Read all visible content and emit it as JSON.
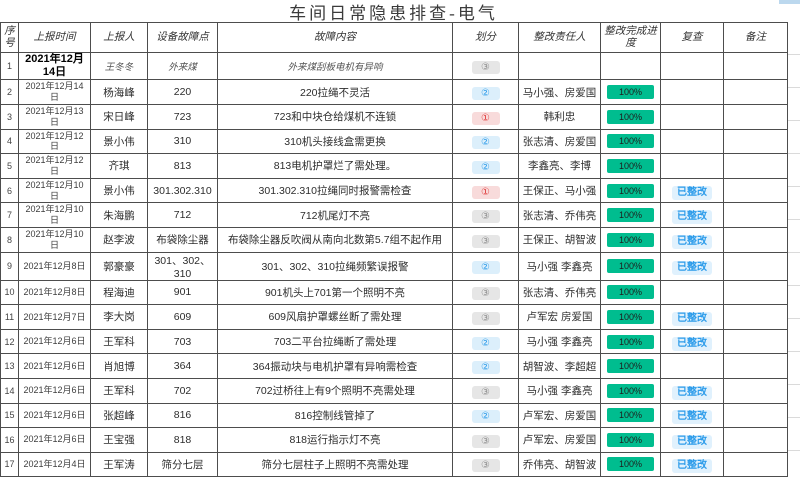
{
  "title": "车间日常隐患排查-电气",
  "columns": [
    "序号",
    "上报时间",
    "上报人",
    "设备故障点",
    "故障内容",
    "划分",
    "整改责任人",
    "整改完成进度",
    "复查",
    "备注"
  ],
  "level_glyphs": {
    "1": "①",
    "2": "②",
    "3": "③"
  },
  "colors": {
    "progress_bar": "#00BD8F",
    "level1_text": "#E03C3C",
    "level1_bg": "#F8DBDB",
    "level2_text": "#2D9CEA",
    "level2_bg": "#DCEFFB",
    "level3_text": "#8C8C8C",
    "level3_bg": "#E6E6E6",
    "review_text": "#2D9CEA",
    "review_bg": "#E0F1FD",
    "border": "#4d4d4d"
  },
  "rows": [
    {
      "no": "1",
      "date": "2021年12月14日",
      "reporter": "王冬冬",
      "device": "外来煤",
      "content": "外来煤刮板电机有异响",
      "level": "3",
      "owner": "",
      "progress": "",
      "review": "",
      "note": "",
      "special": true
    },
    {
      "no": "2",
      "date": "2021年12月14日",
      "reporter": "杨海峰",
      "device": "220",
      "content": "220拉绳不灵活",
      "level": "2",
      "owner": "马小强、房爱国",
      "progress": "100%",
      "review": "",
      "note": ""
    },
    {
      "no": "3",
      "date": "2021年12月13日",
      "reporter": "宋日峰",
      "device": "723",
      "content": "723和中块仓给煤机不连锁",
      "level": "1",
      "owner": "韩利忠",
      "progress": "100%",
      "review": "",
      "note": ""
    },
    {
      "no": "4",
      "date": "2021年12月12日",
      "reporter": "景小伟",
      "device": "310",
      "content": "310机头接线盒需更换",
      "level": "2",
      "owner": "张志清、房爱国",
      "progress": "100%",
      "review": "",
      "note": ""
    },
    {
      "no": "5",
      "date": "2021年12月12日",
      "reporter": "齐琪",
      "device": "813",
      "content": "813电机护罩烂了需处理。",
      "level": "2",
      "owner": "李鑫亮、李博",
      "progress": "100%",
      "review": "",
      "note": ""
    },
    {
      "no": "6",
      "date": "2021年12月10日",
      "reporter": "景小伟",
      "device": "301.302.310",
      "content": "301.302.310拉绳同时报警需检查",
      "level": "1",
      "owner": "王保正、马小强",
      "progress": "100%",
      "review": "已整改",
      "note": ""
    },
    {
      "no": "7",
      "date": "2021年12月10日",
      "reporter": "朱海鹏",
      "device": "712",
      "content": "712机尾灯不亮",
      "level": "3",
      "owner": "张志清、乔伟亮",
      "progress": "100%",
      "review": "已整改",
      "note": ""
    },
    {
      "no": "8",
      "date": "2021年12月10日",
      "reporter": "赵李波",
      "device": "布袋除尘器",
      "content": "布袋除尘器反吹阀从南向北数第5.7组不起作用",
      "level": "3",
      "owner": "王保正、胡智波",
      "progress": "100%",
      "review": "已整改",
      "note": ""
    },
    {
      "no": "9",
      "date": "2021年12月8日",
      "reporter": "郭豪豪",
      "device": "301、302、310",
      "content": "301、302、310拉绳频繁误报警",
      "level": "2",
      "owner": "马小强 李鑫亮",
      "progress": "100%",
      "review": "已整改",
      "note": ""
    },
    {
      "no": "10",
      "date": "2021年12月8日",
      "reporter": "程海迪",
      "device": "901",
      "content": "901机头上701第一个照明不亮",
      "level": "3",
      "owner": "张志清、乔伟亮",
      "progress": "100%",
      "review": "",
      "note": ""
    },
    {
      "no": "11",
      "date": "2021年12月7日",
      "reporter": "李大岗",
      "device": "609",
      "content": "609风扇护罩螺丝断了需处理",
      "level": "3",
      "owner": "卢军宏 房爱国",
      "progress": "100%",
      "review": "已整改",
      "note": ""
    },
    {
      "no": "12",
      "date": "2021年12月6日",
      "reporter": "王军科",
      "device": "703",
      "content": "703二平台拉绳断了需处理",
      "level": "2",
      "owner": "马小强 李鑫亮",
      "progress": "100%",
      "review": "已整改",
      "note": ""
    },
    {
      "no": "13",
      "date": "2021年12月6日",
      "reporter": "肖旭博",
      "device": "364",
      "content": "364振动块与电机护罩有异响需检查",
      "level": "2",
      "owner": "胡智波、李超超",
      "progress": "100%",
      "review": "",
      "note": ""
    },
    {
      "no": "14",
      "date": "2021年12月6日",
      "reporter": "王军科",
      "device": "702",
      "content": "702过桥往上有9个照明不亮需处理",
      "level": "3",
      "owner": "马小强 李鑫亮",
      "progress": "100%",
      "review": "已整改",
      "note": ""
    },
    {
      "no": "15",
      "date": "2021年12月6日",
      "reporter": "张超峰",
      "device": "816",
      "content": "816控制线管掉了",
      "level": "2",
      "owner": "卢军宏、房爱国",
      "progress": "100%",
      "review": "已整改",
      "note": ""
    },
    {
      "no": "16",
      "date": "2021年12月6日",
      "reporter": "王宝强",
      "device": "818",
      "content": "818运行指示灯不亮",
      "level": "3",
      "owner": "卢军宏、房爱国",
      "progress": "100%",
      "review": "已整改",
      "note": ""
    },
    {
      "no": "17",
      "date": "2021年12月4日",
      "reporter": "王军涛",
      "device": "筛分七层",
      "content": "筛分七层柱子上照明不亮需处理",
      "level": "3",
      "owner": "乔伟亮、胡智波",
      "progress": "100%",
      "review": "已整改",
      "note": ""
    }
  ]
}
